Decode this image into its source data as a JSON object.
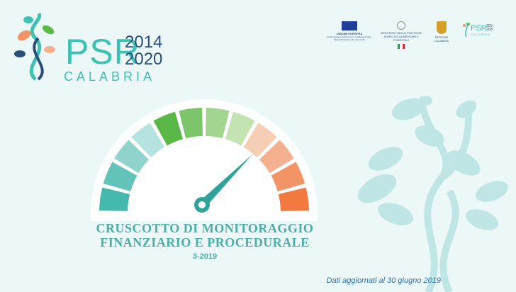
{
  "brand": {
    "name": "PSR",
    "years_top": "2014",
    "years_bottom": "2020",
    "region": "CALABRIA",
    "accent_color": "#3cc1b2",
    "years_color": "#2a4e7a"
  },
  "partners": [
    {
      "label": "UNIONE EUROPEA",
      "sub": "Fondo Europeo Agricolo per lo Sviluppo Rurale: l'Europa investe nelle zone rurali",
      "icon": "eu-flag-icon"
    },
    {
      "label": "MINISTERO DELLE POLITICHE AGRICOLE ALIMENTARI E FORESTALI",
      "icon": "italian-republic-emblem-icon"
    },
    {
      "label": "REGIONE CALABRIA",
      "icon": "calabria-crest-icon"
    },
    {
      "label": "PSR 2014 2020 CALABRIA",
      "icon": "psr-mini-logo-icon"
    }
  ],
  "gauge": {
    "segment_colors": [
      "#45b9ad",
      "#63c3b8",
      "#8fd3cc",
      "#b5e3e0",
      "#5ab847",
      "#7cc56b",
      "#a2d58f",
      "#c3e3b2",
      "#f6cdb5",
      "#f5b08f",
      "#f39467",
      "#f07a3f"
    ],
    "needle_color": "#2fa39a",
    "level": 0.75
  },
  "title": {
    "line1": "CRUSCOTTO DI MONITORAGGIO",
    "line2": "FINANZIARIO E PROCEDURALE",
    "period": "3-2019"
  },
  "footnote": "Dati aggiornati al 30 giugno 2019"
}
